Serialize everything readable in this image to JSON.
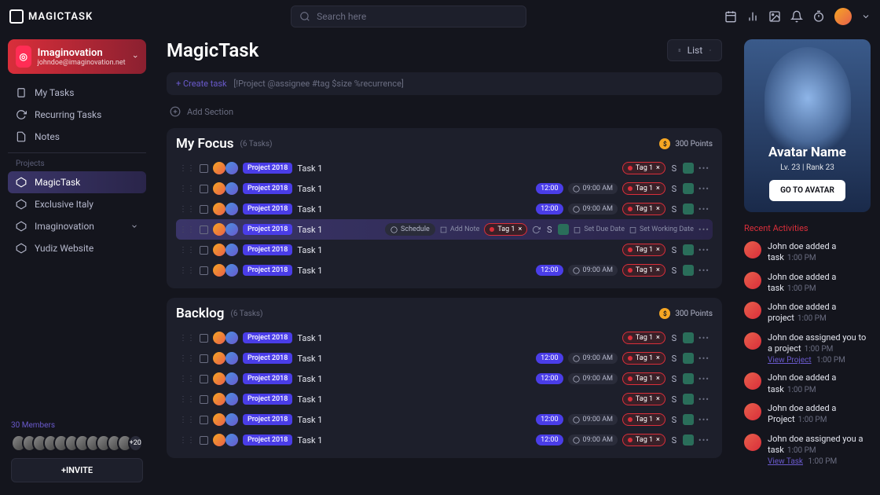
{
  "brand": "MAGICTASK",
  "search_placeholder": "Search here",
  "org": {
    "name": "Imaginovation",
    "email": "johndoe@imaginovation.net"
  },
  "nav": {
    "my_tasks": "My Tasks",
    "recurring": "Recurring Tasks",
    "notes": "Notes",
    "projects_header": "Projects",
    "projects": [
      {
        "name": "MagicTask",
        "active": true
      },
      {
        "name": "Exclusive Italy"
      },
      {
        "name": "Imaginovation",
        "expandable": true
      },
      {
        "name": "Yudiz Website"
      }
    ]
  },
  "members": {
    "title": "30 Members",
    "more": "+20",
    "invite": "+INVITE"
  },
  "page": {
    "title": "MagicTask",
    "view": "List"
  },
  "create_bar": {
    "prefix": "+ Create task",
    "hint": "[!Project @assignee #tag $size %recurrence]"
  },
  "add_section": "Add Section",
  "sections": [
    {
      "title": "My Focus",
      "count": "(6 Tasks)",
      "points": "300 Points",
      "tasks": [
        {
          "project": "Project 2018",
          "name": "Task 1",
          "tag": "Tag 1",
          "size": "S"
        },
        {
          "project": "Project 2018",
          "name": "Task 1",
          "due": "12:00",
          "time": "09:00 AM",
          "tag": "Tag 1",
          "size": "S"
        },
        {
          "project": "Project 2018",
          "name": "Task 1",
          "due": "12:00",
          "time": "09:00 AM",
          "tag": "Tag 1",
          "size": "S"
        },
        {
          "project": "Project 2018",
          "name": "Task 1",
          "tag": "Tag 1",
          "size": "S",
          "highlighted": true,
          "schedule": "Schedule",
          "add_note": "Add Note",
          "set_due": "Set Due Date",
          "set_working": "Set Working Date"
        },
        {
          "project": "Project 2018",
          "name": "Task 1",
          "tag": "Tag 1",
          "size": "S"
        },
        {
          "project": "Project 2018",
          "name": "Task 1",
          "due": "12:00",
          "time": "09:00 AM",
          "tag": "Tag 1",
          "size": "S"
        }
      ]
    },
    {
      "title": "Backlog",
      "count": "(6 Tasks)",
      "points": "300 Points",
      "tasks": [
        {
          "project": "Project 2018",
          "name": "Task 1",
          "tag": "Tag 1",
          "size": "S"
        },
        {
          "project": "Project 2018",
          "name": "Task 1",
          "due": "12:00",
          "time": "09:00 AM",
          "tag": "Tag 1",
          "size": "S"
        },
        {
          "project": "Project 2018",
          "name": "Task 1",
          "due": "12:00",
          "time": "09:00 AM",
          "tag": "Tag 1",
          "size": "S"
        },
        {
          "project": "Project 2018",
          "name": "Task 1",
          "tag": "Tag 1",
          "size": "S"
        },
        {
          "project": "Project 2018",
          "name": "Task 1",
          "due": "12:00",
          "time": "09:00 AM",
          "tag": "Tag 1",
          "size": "S"
        },
        {
          "project": "Project 2018",
          "name": "Task 1",
          "due": "12:00",
          "time": "09:00 AM",
          "tag": "Tag 1",
          "size": "S"
        }
      ]
    }
  ],
  "avatar": {
    "name": "Avatar Name",
    "level": "Lv. 23 | Rank 23",
    "button": "GO TO AVATAR"
  },
  "activities": {
    "title": "Recent Activities",
    "items": [
      {
        "text": "John doe added a task",
        "time": "1:00 PM"
      },
      {
        "text": "John doe added a task",
        "time": "1:00 PM"
      },
      {
        "text": "John doe added a project",
        "time": "1:00 PM"
      },
      {
        "text": "John doe assigned you to a project",
        "time": "1:00 PM",
        "link": "View Project"
      },
      {
        "text": "John doe added a task",
        "time": "1:00 PM"
      },
      {
        "text": "John doe added a Project",
        "time": "1:00 PM"
      },
      {
        "text": "John doe assigned you a task",
        "time": "1:00 PM",
        "link": "View Task"
      }
    ]
  }
}
